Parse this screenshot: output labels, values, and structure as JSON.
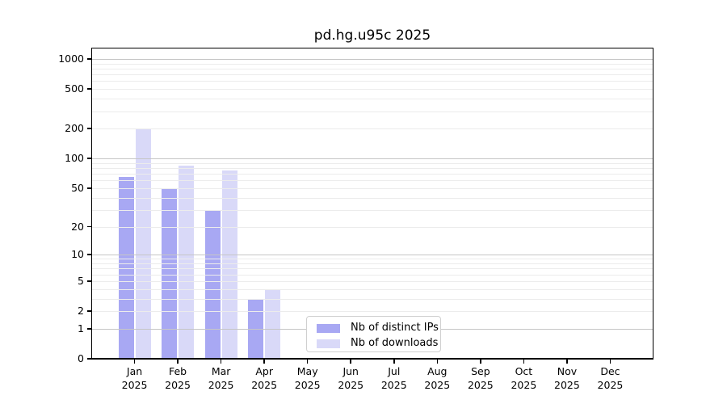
{
  "figure": {
    "title": "pd.hg.u95c 2025"
  },
  "colors": {
    "distinct_ips": "#a8a8f3",
    "downloads": "#d9d9f8",
    "grid_major": "#c6c6c6",
    "grid_minor": "#ececec",
    "frame": "#000000",
    "background": "#ffffff",
    "legend_border": "#d0d0d0"
  },
  "chart_data": {
    "type": "bar",
    "title": "pd.hg.u95c 2025",
    "x_categories": [
      "Jan",
      "Feb",
      "Mar",
      "Apr",
      "May",
      "Jun",
      "Jul",
      "Aug",
      "Sep",
      "Oct",
      "Nov",
      "Dec"
    ],
    "x_year": "2025",
    "series": [
      {
        "name": "Nb of distinct IPs",
        "color": "#a8a8f3",
        "values": [
          65,
          50,
          30,
          3,
          0,
          0,
          0,
          0,
          0,
          0,
          0,
          0
        ]
      },
      {
        "name": "Nb of downloads",
        "color": "#d9d9f8",
        "values": [
          200,
          85,
          75,
          4,
          0,
          0,
          0,
          0,
          0,
          0,
          0,
          0
        ]
      }
    ],
    "y_scale": "log1p",
    "ylim": [
      0,
      1100
    ],
    "y_ticks": [
      0,
      1,
      2,
      5,
      10,
      20,
      50,
      100,
      200,
      500,
      1000
    ],
    "y_major_gridlines": [
      1,
      10,
      100,
      1000
    ],
    "grid": true,
    "legend_position": "bottom-center",
    "xlabel": "",
    "ylabel": ""
  }
}
